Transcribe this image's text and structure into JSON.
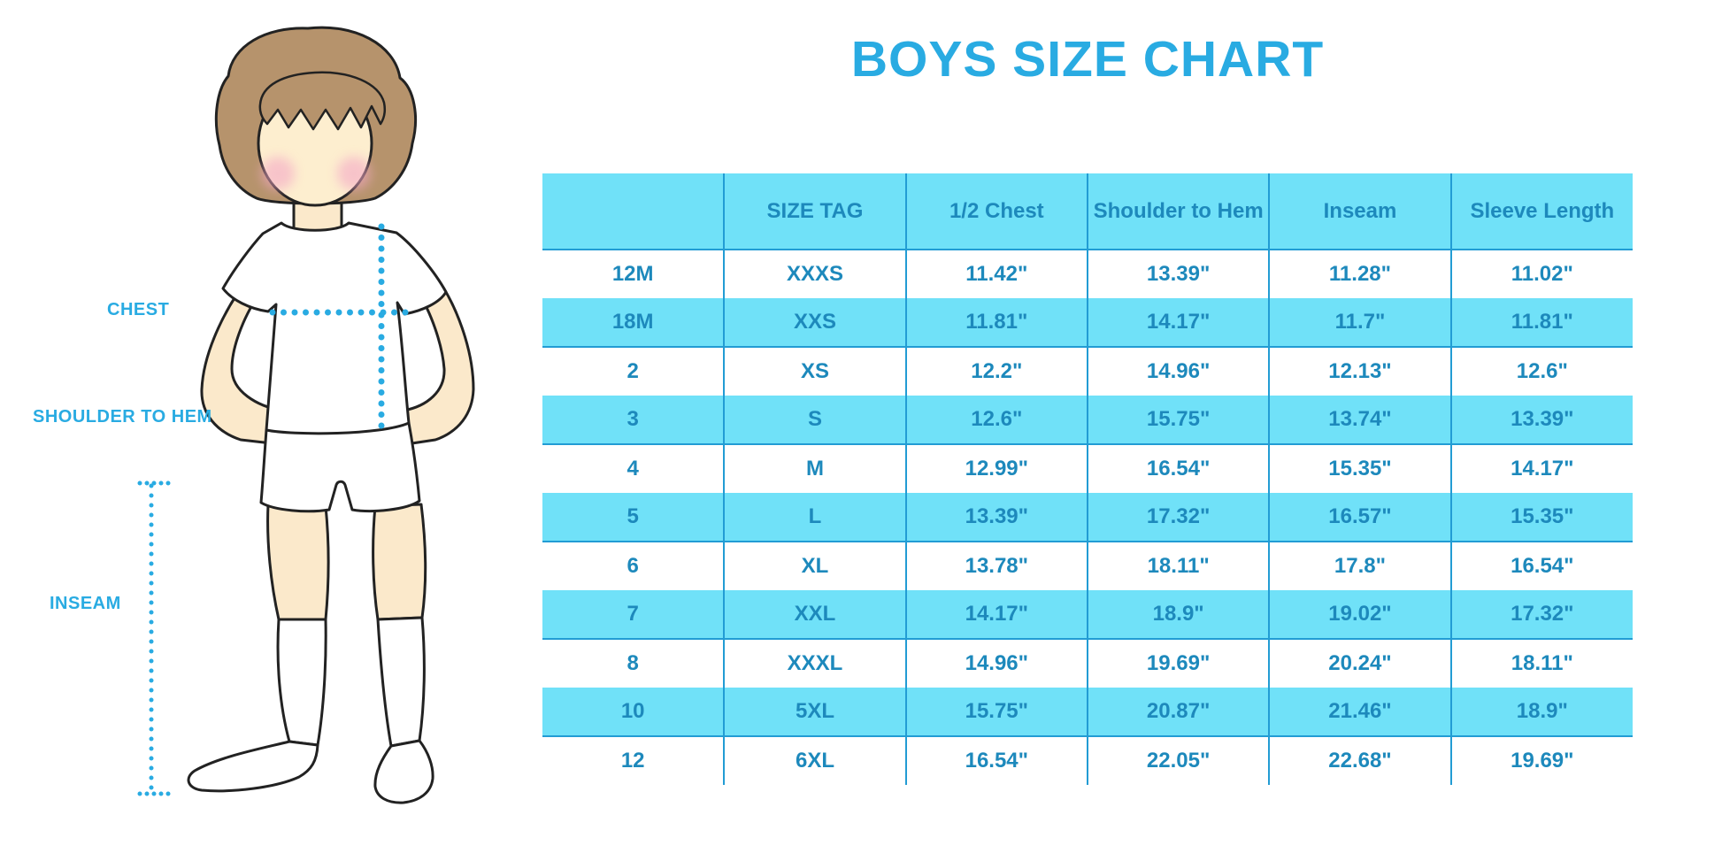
{
  "title": {
    "text": "BOYS SIZE CHART",
    "color": "#29ABE2"
  },
  "diagram": {
    "labels": {
      "chest": "CHEST",
      "shoulder_to_hem": "SHOULDER TO HEM",
      "inseam": "INSEAM"
    },
    "colors": {
      "skin": "#FBE9CB",
      "hair": "#B6936C",
      "cheek": "#F4A8C6",
      "outline": "#222222",
      "clothing": "#FFFFFF",
      "measure_dotted_line": "#29ABE2"
    }
  },
  "table_style": {
    "band_color": "#70E1F8",
    "grid_line_color": "#229CD4",
    "text_color": "#1D89BC",
    "banded_rows": "header, 18M, 3, 5, 7, 10"
  },
  "chart_data": {
    "type": "table",
    "title": "BOYS SIZE CHART",
    "columns": [
      "",
      "SIZE TAG",
      "1/2 Chest",
      "Shoulder to Hem",
      "Inseam",
      "Sleeve Length"
    ],
    "rows": [
      [
        "12M",
        "XXXS",
        "11.42\"",
        "13.39\"",
        "11.28\"",
        "11.02\""
      ],
      [
        "18M",
        "XXS",
        "11.81\"",
        "14.17\"",
        "11.7\"",
        "11.81\""
      ],
      [
        "2",
        "XS",
        "12.2\"",
        "14.96\"",
        "12.13\"",
        "12.6\""
      ],
      [
        "3",
        "S",
        "12.6\"",
        "15.75\"",
        "13.74\"",
        "13.39\""
      ],
      [
        "4",
        "M",
        "12.99\"",
        "16.54\"",
        "15.35\"",
        "14.17\""
      ],
      [
        "5",
        "L",
        "13.39\"",
        "17.32\"",
        "16.57\"",
        "15.35\""
      ],
      [
        "6",
        "XL",
        "13.78\"",
        "18.11\"",
        "17.8\"",
        "16.54\""
      ],
      [
        "7",
        "XXL",
        "14.17\"",
        "18.9\"",
        "19.02\"",
        "17.32\""
      ],
      [
        "8",
        "XXXL",
        "14.96\"",
        "19.69\"",
        "20.24\"",
        "18.11\""
      ],
      [
        "10",
        "5XL",
        "15.75\"",
        "20.87\"",
        "21.46\"",
        "18.9\""
      ],
      [
        "12",
        "6XL",
        "16.54\"",
        "22.05\"",
        "22.68\"",
        "19.69\""
      ]
    ]
  }
}
